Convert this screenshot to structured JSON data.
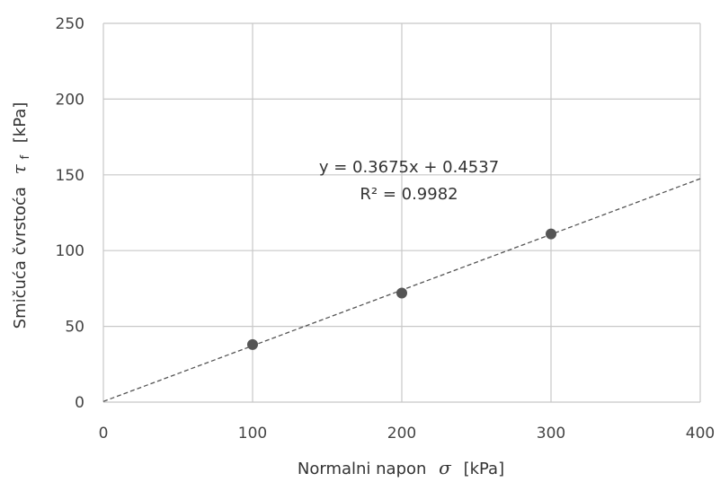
{
  "chart_data": {
    "type": "scatter",
    "xlabel_text": "Normalni napon",
    "xlabel_symbol": "σ",
    "xlabel_unit": "[kPa]",
    "ylabel_text": "Smičuća čvrstoća",
    "ylabel_symbol": "τ",
    "ylabel_subscript": "f",
    "ylabel_unit": "[kPa]",
    "xlim": [
      0,
      400
    ],
    "ylim": [
      0,
      250
    ],
    "x_ticks": [
      0,
      100,
      200,
      300,
      400
    ],
    "y_ticks": [
      0,
      50,
      100,
      150,
      200,
      250
    ],
    "grid": true,
    "series": [
      {
        "x": [
          100,
          200,
          300
        ],
        "y": [
          38,
          72,
          111
        ],
        "color": "#555555"
      }
    ],
    "trendline": {
      "slope": 0.3675,
      "intercept": 0.4537,
      "style": "dashed",
      "color": "#555555",
      "equation": "y = 0.3675x + 0.4537",
      "r2": "R² = 0.9982"
    }
  }
}
